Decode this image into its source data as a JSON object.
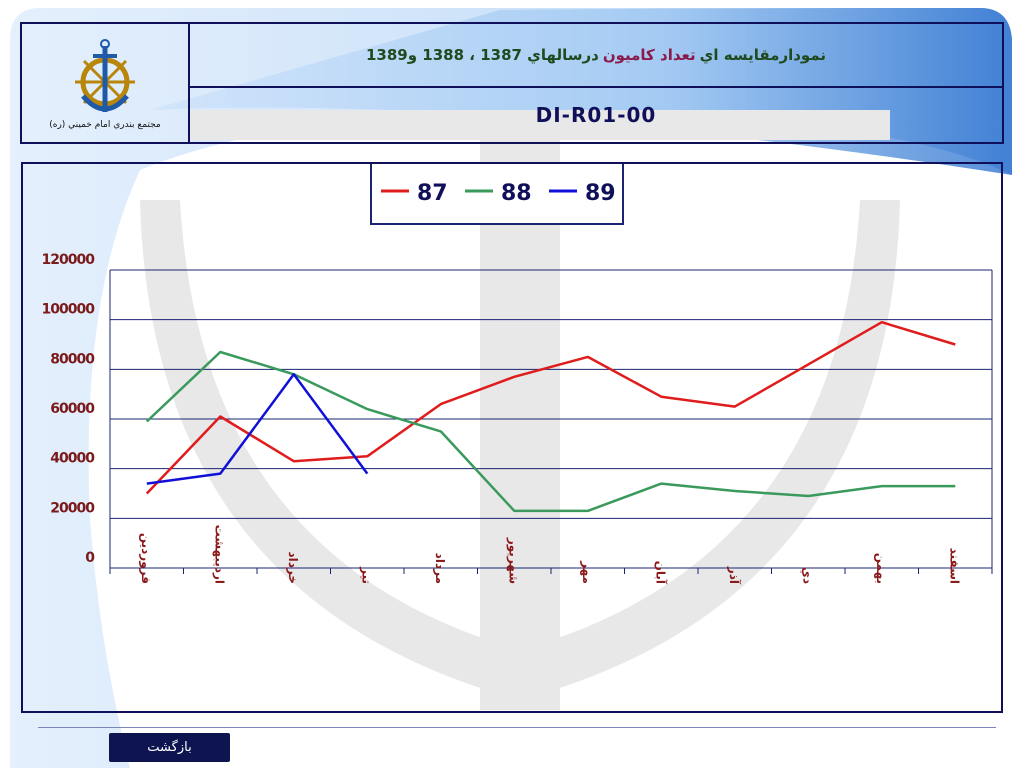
{
  "header": {
    "logo_caption": "مجتمع بندري امام خميني (ره)",
    "title": [
      "نمودارمقايسه اي",
      "تعداد كاميون",
      "درسالهاي 1387 ، 1388 و1389"
    ],
    "code": "DI-R01-00"
  },
  "chart_data": {
    "type": "line",
    "categories": [
      "فروردين",
      "ارديبهشت",
      "خرداد",
      "تير",
      "مرداد",
      "شهريور",
      "مهر",
      "آبان",
      "آذر",
      "دي",
      "بهمن",
      "اسفند"
    ],
    "series": [
      {
        "name": "87",
        "color": "#e01c1c",
        "values": [
          30000,
          61000,
          43000,
          45000,
          66000,
          77000,
          85000,
          69000,
          65000,
          82000,
          99000,
          90000
        ]
      },
      {
        "name": "88",
        "color": "#3a9a5c",
        "values": [
          59000,
          87000,
          78000,
          64000,
          55000,
          23000,
          23000,
          34000,
          31000,
          29000,
          33000,
          33000
        ]
      },
      {
        "name": "89",
        "color": "#1010d8",
        "values": [
          34000,
          38000,
          78000,
          38000,
          null,
          null,
          null,
          null,
          null,
          null,
          null,
          null
        ]
      }
    ],
    "ylim": [
      0,
      120000
    ],
    "yticks": [
      0,
      20000,
      40000,
      60000,
      80000,
      100000,
      120000
    ],
    "grid": true,
    "legend": "top"
  },
  "back_button": "بازگشت"
}
